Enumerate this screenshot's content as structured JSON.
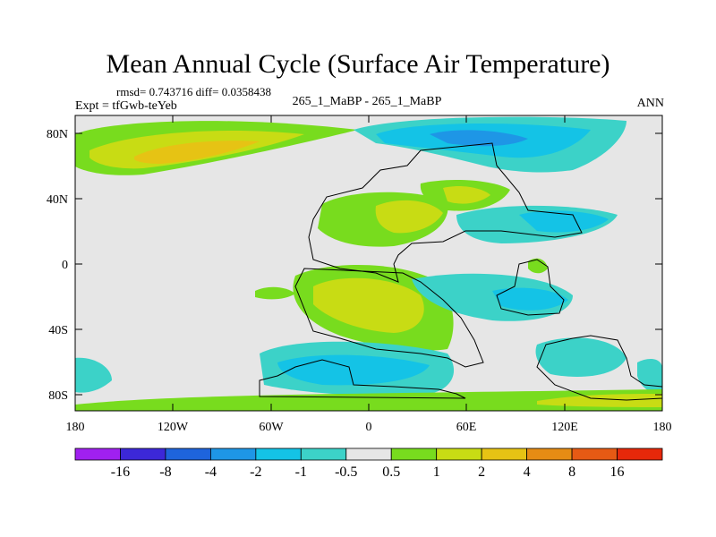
{
  "title": "Mean Annual Cycle (Surface Air Temperature)",
  "rmsd_line": "rmsd= 0.743716 diff= 0.0358438",
  "expt_line": "Expt = tfGwb-teYeb",
  "center_line": "265_1_MaBP - 265_1_MaBP",
  "season": "ANN",
  "lat_ticks": [
    "80N",
    "40N",
    "0",
    "40S",
    "80S"
  ],
  "lon_ticks": [
    "180",
    "120W",
    "60W",
    "0",
    "60E",
    "120E",
    "180"
  ],
  "legend": {
    "labels": [
      "-16",
      "-8",
      "-4",
      "-2",
      "-1",
      "-0.5",
      "0.5",
      "1",
      "2",
      "4",
      "8",
      "16"
    ],
    "colors": [
      "#a020f0",
      "#3c28d8",
      "#1e64dc",
      "#1e96e6",
      "#14c3e6",
      "#3cd2c8",
      "#e6e6e6",
      "#78dc1e",
      "#c8dc14",
      "#e6c314",
      "#e68c14",
      "#e65a14",
      "#e6280a"
    ]
  }
}
